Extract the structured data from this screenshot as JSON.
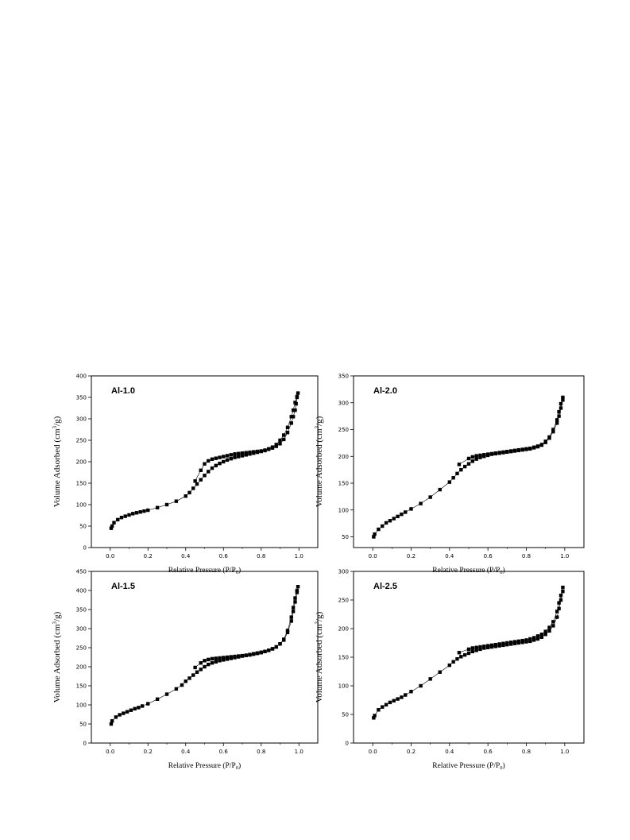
{
  "chart_data": [
    {
      "type": "scatter",
      "label": "Al-1.0",
      "xlabel": "Relative Pressure (P/P",
      "xlabel_sub": "0",
      "xlabel_end": ")",
      "ylabel": "Volume Adsorbed (cm",
      "ylabel_sup": "3",
      "ylabel_end": "/g)",
      "xlim": [
        -0.1,
        1.1
      ],
      "ylim": [
        0,
        400
      ],
      "xticks": [
        0.0,
        0.2,
        0.4,
        0.6,
        0.8,
        1.0
      ],
      "xtick_labels": [
        "0.0",
        "0.2",
        "0.4",
        "0.6",
        "0.8",
        "1.0"
      ],
      "yticks": [
        0,
        50,
        100,
        150,
        200,
        250,
        300,
        350,
        400
      ],
      "ytick_labels": [
        "0",
        "50",
        "100",
        "150",
        "200",
        "250",
        "300",
        "350",
        "400"
      ],
      "series": [
        {
          "x": [
            0.005,
            0.01,
            0.02,
            0.04,
            0.06,
            0.08,
            0.1,
            0.12,
            0.14,
            0.16,
            0.18,
            0.2,
            0.25,
            0.3,
            0.35,
            0.4,
            0.42,
            0.44,
            0.46,
            0.48,
            0.5,
            0.52,
            0.54,
            0.56,
            0.58,
            0.6,
            0.62,
            0.64,
            0.66,
            0.68,
            0.7,
            0.72,
            0.74,
            0.76,
            0.78,
            0.8,
            0.82,
            0.84,
            0.86,
            0.88,
            0.9,
            0.92,
            0.94,
            0.96,
            0.97,
            0.98,
            0.985,
            0.99
          ],
          "y": [
            45,
            50,
            58,
            65,
            70,
            73,
            76,
            79,
            81,
            83,
            85,
            87,
            93,
            100,
            108,
            120,
            128,
            138,
            148,
            158,
            168,
            177,
            185,
            191,
            196,
            200,
            204,
            207,
            210,
            212,
            214,
            216,
            218,
            220,
            222,
            224,
            226,
            229,
            232,
            236,
            242,
            252,
            268,
            290,
            305,
            320,
            335,
            350
          ]
        },
        {
          "x": [
            0.45,
            0.48,
            0.5,
            0.52,
            0.54,
            0.56,
            0.58,
            0.6,
            0.62,
            0.64,
            0.66,
            0.68,
            0.7,
            0.72,
            0.74,
            0.76,
            0.78,
            0.8,
            0.82,
            0.84,
            0.86,
            0.88,
            0.9,
            0.92,
            0.94,
            0.96,
            0.97,
            0.98,
            0.99,
            0.995
          ],
          "y": [
            155,
            180,
            195,
            202,
            206,
            208,
            210,
            212,
            214,
            216,
            218,
            219,
            220,
            221,
            222,
            223,
            224,
            225,
            227,
            230,
            234,
            240,
            250,
            262,
            280,
            305,
            320,
            338,
            352,
            360
          ]
        }
      ]
    },
    {
      "type": "scatter",
      "label": "Al-2.0",
      "xlabel": "Relative Pressure (P/P",
      "xlabel_sub": "0",
      "xlabel_end": ")",
      "ylabel": "Volume Adsorbed (cm",
      "ylabel_sup": "3",
      "ylabel_end": "/g)",
      "xlim": [
        -0.1,
        1.1
      ],
      "ylim": [
        30,
        350
      ],
      "xticks": [
        0.0,
        0.2,
        0.4,
        0.6,
        0.8,
        1.0
      ],
      "xtick_labels": [
        "0.0",
        "0.2",
        "0.4",
        "0.6",
        "0.8",
        "1.0"
      ],
      "yticks": [
        50,
        100,
        150,
        200,
        250,
        300,
        350
      ],
      "ytick_labels": [
        "50",
        "100",
        "150",
        "200",
        "250",
        "300",
        "350"
      ],
      "series": [
        {
          "x": [
            0.005,
            0.01,
            0.03,
            0.05,
            0.07,
            0.09,
            0.11,
            0.13,
            0.15,
            0.17,
            0.2,
            0.25,
            0.3,
            0.35,
            0.4,
            0.42,
            0.44,
            0.46,
            0.48,
            0.5,
            0.52,
            0.54,
            0.56,
            0.58,
            0.6,
            0.62,
            0.64,
            0.66,
            0.68,
            0.7,
            0.72,
            0.74,
            0.76,
            0.78,
            0.8,
            0.82,
            0.84,
            0.86,
            0.88,
            0.9,
            0.92,
            0.94,
            0.96,
            0.97,
            0.98,
            0.99
          ],
          "y": [
            50,
            55,
            64,
            70,
            76,
            80,
            84,
            88,
            92,
            96,
            102,
            112,
            124,
            138,
            152,
            160,
            168,
            175,
            181,
            186,
            191,
            195,
            198,
            200,
            202,
            204,
            205,
            206,
            207,
            208,
            209,
            210,
            211,
            212,
            213,
            214,
            216,
            218,
            221,
            226,
            234,
            246,
            262,
            275,
            290,
            305
          ]
        },
        {
          "x": [
            0.45,
            0.5,
            0.52,
            0.54,
            0.56,
            0.58,
            0.6,
            0.62,
            0.64,
            0.66,
            0.68,
            0.7,
            0.72,
            0.74,
            0.76,
            0.78,
            0.8,
            0.82,
            0.84,
            0.86,
            0.88,
            0.9,
            0.92,
            0.94,
            0.96,
            0.97,
            0.98,
            0.99
          ],
          "y": [
            185,
            196,
            199,
            201,
            202,
            203,
            204,
            205,
            206,
            207,
            208,
            209,
            210,
            211,
            212,
            213,
            214,
            215,
            217,
            219,
            222,
            228,
            236,
            250,
            268,
            283,
            298,
            310
          ]
        }
      ]
    },
    {
      "type": "scatter",
      "label": "Al-1.5",
      "xlabel": "Relative Pressure (P/P",
      "xlabel_sub": "0",
      "xlabel_end": ")",
      "ylabel": "Volume Adsorbed (cm",
      "ylabel_sup": "3",
      "ylabel_end": "/g)",
      "xlim": [
        -0.1,
        1.1
      ],
      "ylim": [
        0,
        450
      ],
      "xticks": [
        0.0,
        0.2,
        0.4,
        0.6,
        0.8,
        1.0
      ],
      "xtick_labels": [
        "0.0",
        "0.2",
        "0.4",
        "0.6",
        "0.8",
        "1.0"
      ],
      "yticks": [
        0,
        50,
        100,
        150,
        200,
        250,
        300,
        350,
        400,
        450
      ],
      "ytick_labels": [
        "0",
        "50",
        "100",
        "150",
        "200",
        "250",
        "300",
        "350",
        "400",
        "450"
      ],
      "series": [
        {
          "x": [
            0.005,
            0.01,
            0.03,
            0.05,
            0.07,
            0.09,
            0.11,
            0.13,
            0.15,
            0.17,
            0.2,
            0.25,
            0.3,
            0.35,
            0.38,
            0.4,
            0.42,
            0.44,
            0.46,
            0.48,
            0.5,
            0.52,
            0.54,
            0.56,
            0.58,
            0.6,
            0.62,
            0.64,
            0.66,
            0.68,
            0.7,
            0.72,
            0.74,
            0.76,
            0.78,
            0.8,
            0.82,
            0.84,
            0.86,
            0.88,
            0.9,
            0.92,
            0.94,
            0.96,
            0.97,
            0.98,
            0.99
          ],
          "y": [
            50,
            58,
            68,
            74,
            78,
            82,
            86,
            90,
            93,
            97,
            103,
            115,
            128,
            142,
            152,
            162,
            170,
            178,
            186,
            193,
            200,
            206,
            210,
            213,
            216,
            218,
            220,
            222,
            224,
            226,
            228,
            230,
            232,
            234,
            236,
            238,
            240,
            243,
            247,
            252,
            260,
            272,
            295,
            330,
            355,
            380,
            400
          ]
        },
        {
          "x": [
            0.45,
            0.48,
            0.5,
            0.52,
            0.54,
            0.56,
            0.58,
            0.6,
            0.62,
            0.64,
            0.66,
            0.68,
            0.7,
            0.72,
            0.74,
            0.76,
            0.78,
            0.8,
            0.82,
            0.84,
            0.86,
            0.88,
            0.9,
            0.92,
            0.94,
            0.96,
            0.97,
            0.98,
            0.99,
            0.995
          ],
          "y": [
            198,
            210,
            216,
            219,
            221,
            222,
            223,
            224,
            225,
            226,
            227,
            228,
            229,
            230,
            231,
            233,
            235,
            237,
            240,
            243,
            247,
            252,
            260,
            270,
            290,
            320,
            345,
            370,
            395,
            410
          ]
        }
      ]
    },
    {
      "type": "scatter",
      "label": "Al-2.5",
      "xlabel": "Relative Pressure (P/P",
      "xlabel_sub": "0",
      "xlabel_end": ")",
      "ylabel": "Volume Adsorbed (cm",
      "ylabel_sup": "3",
      "ylabel_end": "/g)",
      "xlim": [
        -0.1,
        1.1
      ],
      "ylim": [
        0,
        300
      ],
      "xticks": [
        0.0,
        0.2,
        0.4,
        0.6,
        0.8,
        1.0
      ],
      "xtick_labels": [
        "0.0",
        "0.2",
        "0.4",
        "0.6",
        "0.8",
        "1.0"
      ],
      "yticks": [
        0,
        50,
        100,
        150,
        200,
        250,
        300
      ],
      "ytick_labels": [
        "0",
        "50",
        "100",
        "150",
        "200",
        "250",
        "300"
      ],
      "series": [
        {
          "x": [
            0.005,
            0.01,
            0.03,
            0.05,
            0.07,
            0.09,
            0.11,
            0.13,
            0.15,
            0.17,
            0.2,
            0.25,
            0.3,
            0.35,
            0.4,
            0.42,
            0.44,
            0.46,
            0.48,
            0.5,
            0.52,
            0.54,
            0.56,
            0.58,
            0.6,
            0.62,
            0.64,
            0.66,
            0.68,
            0.7,
            0.72,
            0.74,
            0.76,
            0.78,
            0.8,
            0.82,
            0.84,
            0.86,
            0.88,
            0.9,
            0.92,
            0.94,
            0.96,
            0.97,
            0.98,
            0.99
          ],
          "y": [
            44,
            48,
            58,
            63,
            67,
            71,
            74,
            77,
            80,
            84,
            90,
            100,
            112,
            124,
            136,
            142,
            147,
            151,
            154,
            157,
            160,
            162,
            164,
            166,
            167,
            168,
            169,
            170,
            171,
            172,
            173,
            174,
            175,
            176,
            177,
            178,
            180,
            182,
            185,
            190,
            196,
            205,
            220,
            235,
            250,
            265
          ]
        },
        {
          "x": [
            0.45,
            0.5,
            0.52,
            0.54,
            0.56,
            0.58,
            0.6,
            0.62,
            0.64,
            0.66,
            0.68,
            0.7,
            0.72,
            0.74,
            0.76,
            0.78,
            0.8,
            0.82,
            0.84,
            0.86,
            0.88,
            0.9,
            0.92,
            0.94,
            0.96,
            0.97,
            0.98,
            0.99
          ],
          "y": [
            158,
            164,
            166,
            167,
            168,
            169,
            170,
            171,
            172,
            173,
            174,
            175,
            176,
            177,
            178,
            179,
            180,
            182,
            184,
            187,
            190,
            195,
            202,
            212,
            230,
            245,
            258,
            272
          ]
        }
      ]
    }
  ]
}
